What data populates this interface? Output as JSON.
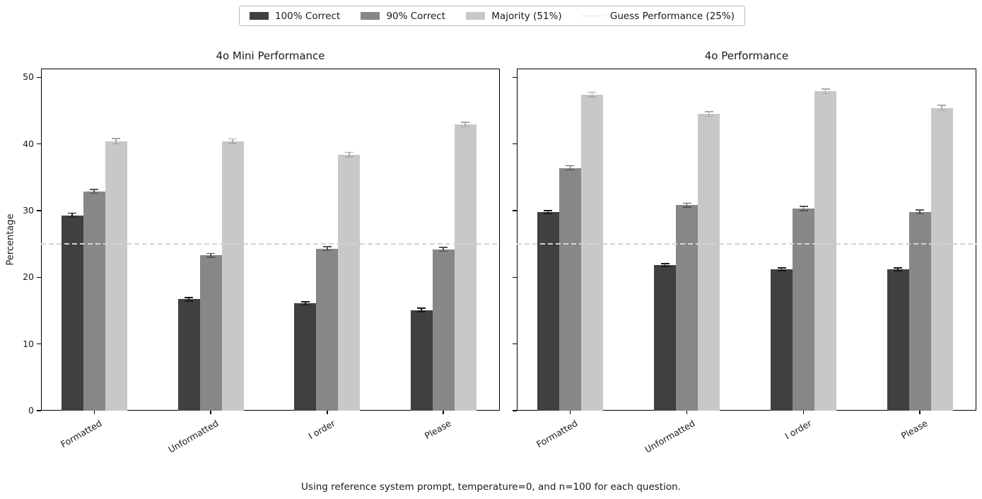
{
  "legend": {
    "items": [
      {
        "label": "100% Correct",
        "swatch": "bar",
        "color": "#404040"
      },
      {
        "label": "90% Correct",
        "swatch": "bar",
        "color": "#878787"
      },
      {
        "label": "Majority (51%)",
        "swatch": "bar",
        "color": "#c8c8c8"
      },
      {
        "label": "Guess Performance (25%)",
        "swatch": "dash",
        "color": "#d3d3d3"
      }
    ]
  },
  "caption": "Using reference system prompt, temperature=0, and n=100 for each question.",
  "chart_data": [
    {
      "type": "bar",
      "title": "4o Mini Performance",
      "ylabel": "Percentage",
      "categories": [
        "Formatted",
        "Unformatted",
        "I order",
        "Please"
      ],
      "series": [
        {
          "name": "100% Correct",
          "color": "#404040",
          "ecolor": "#1a1a1a",
          "values": [
            29.3,
            16.7,
            16.1,
            15.1
          ],
          "errors": [
            0.3,
            0.25,
            0.25,
            0.25
          ]
        },
        {
          "name": "90% Correct",
          "color": "#878787",
          "ecolor": "#555555",
          "values": [
            32.9,
            23.3,
            24.3,
            24.2
          ],
          "errors": [
            0.3,
            0.3,
            0.3,
            0.3
          ]
        },
        {
          "name": "Majority (51%)",
          "color": "#c8c8c8",
          "ecolor": "#aaaaaa",
          "values": [
            40.4,
            40.4,
            38.4,
            42.9
          ],
          "errors": [
            0.4,
            0.35,
            0.35,
            0.35
          ]
        }
      ],
      "guess_line": {
        "label": "Guess Performance (25%)",
        "value": 25,
        "color": "#d3d3d3",
        "style": "dashed"
      },
      "ylim": [
        0,
        51.2
      ],
      "yticks": [
        0,
        10,
        20,
        30,
        40,
        50
      ],
      "show_ytick_labels": true,
      "grid": false,
      "legend_position": "top-center-outside"
    },
    {
      "type": "bar",
      "title": "4o Performance",
      "ylabel": "",
      "categories": [
        "Formatted",
        "Unformatted",
        "I order",
        "Please"
      ],
      "series": [
        {
          "name": "100% Correct",
          "color": "#404040",
          "ecolor": "#1a1a1a",
          "values": [
            29.8,
            21.8,
            21.2,
            21.2
          ],
          "errors": [
            0.2,
            0.15,
            0.15,
            0.15
          ]
        },
        {
          "name": "90% Correct",
          "color": "#878787",
          "ecolor": "#555555",
          "values": [
            36.4,
            30.8,
            30.3,
            29.8
          ],
          "errors": [
            0.3,
            0.3,
            0.3,
            0.3
          ]
        },
        {
          "name": "Majority (51%)",
          "color": "#c8c8c8",
          "ecolor": "#aaaaaa",
          "values": [
            47.4,
            44.5,
            47.9,
            45.4
          ],
          "errors": [
            0.35,
            0.35,
            0.35,
            0.4
          ]
        }
      ],
      "guess_line": {
        "label": "Guess Performance (25%)",
        "value": 25,
        "color": "#d3d3d3",
        "style": "dashed"
      },
      "ylim": [
        0,
        51.2
      ],
      "yticks": [
        0,
        10,
        20,
        30,
        40,
        50
      ],
      "show_ytick_labels": false,
      "grid": false,
      "legend_position": "top-center-outside"
    }
  ]
}
